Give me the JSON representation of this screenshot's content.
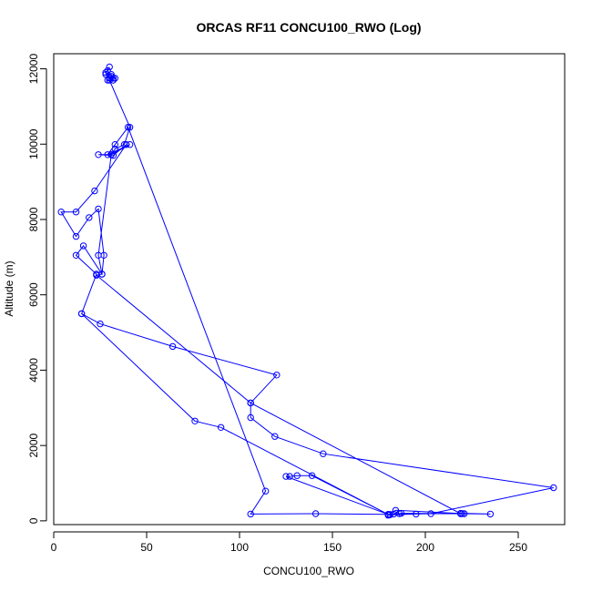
{
  "chart_data": {
    "type": "line",
    "title": "ORCAS RF11 CONCU100_RWO (Log)",
    "xlabel": "CONCU100_RWO",
    "ylabel": "Altitude (m)",
    "xlim": [
      0,
      275
    ],
    "ylim": [
      -100,
      12400
    ],
    "xticks": [
      0,
      50,
      100,
      150,
      200,
      250
    ],
    "yticks": [
      0,
      2000,
      4000,
      6000,
      8000,
      10000,
      12000
    ],
    "xtick_labels": [
      "0",
      "50",
      "100",
      "150",
      "200",
      "250"
    ],
    "ytick_labels": [
      "0",
      "2000",
      "4000",
      "6000",
      "8000",
      "10000",
      "12000"
    ],
    "grid": false,
    "series": [
      {
        "name": "",
        "color": "#0000ff",
        "marker": "open-circle",
        "x": [
          30,
          29,
          28,
          31,
          33,
          32,
          29,
          30,
          28,
          31,
          32,
          30,
          41,
          38,
          33,
          31,
          24,
          32,
          39,
          22,
          12,
          4,
          12,
          19,
          24,
          27,
          26,
          16,
          12,
          23,
          15,
          25,
          64,
          120,
          106,
          106,
          119,
          145,
          269,
          203,
          195,
          181,
          186,
          180,
          184,
          221,
          219,
          220,
          187,
          183,
          181,
          141,
          106,
          114,
          40,
          33,
          29,
          41,
          31,
          24,
          26,
          23,
          106,
          219,
          235,
          219,
          180,
          125,
          127,
          131,
          139,
          180,
          90,
          76,
          15
        ],
        "y": [
          12050,
          11950,
          11900,
          11800,
          11750,
          11700,
          11700,
          11750,
          11850,
          11850,
          11750,
          11700,
          10450,
          9990,
          9870,
          9720,
          9720,
          9700,
          9990,
          8760,
          8200,
          8200,
          7550,
          8050,
          8280,
          7050,
          6550,
          7300,
          7050,
          6550,
          5500,
          5230,
          4630,
          3870,
          3130,
          2740,
          2240,
          1780,
          880,
          190,
          180,
          160,
          190,
          150,
          280,
          190,
          190,
          190,
          200,
          180,
          170,
          190,
          180,
          790,
          10450,
          9990,
          9720,
          9990,
          9720,
          7050,
          6550,
          6520,
          3130,
          190,
          180,
          200,
          170,
          1180,
          1180,
          1200,
          1200,
          170,
          2480,
          2650,
          5500
        ]
      }
    ]
  }
}
